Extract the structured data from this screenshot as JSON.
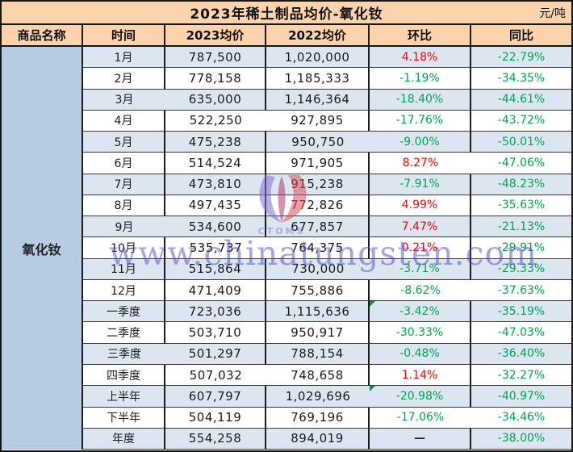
{
  "title": {
    "text": "2023年稀土制品均价-氧化钕",
    "unit": "元/吨"
  },
  "product_name": "氧化钕",
  "watermark": {
    "text": "www.chinatungsten.com",
    "logo_label": "CTOMS"
  },
  "colors": {
    "header_bg": "#fcd3ac",
    "product_column_bg": "#b7cce2",
    "alt_row_bg": "#dce6f1",
    "positive_pct": "#ff0000",
    "negative_pct": "#00a651",
    "flag_triangle": "#1c8a3c",
    "watermark_blue": "#4b4bcd"
  },
  "flagged_mom_rows": [
    12,
    16
  ],
  "chart_data": {
    "type": "table",
    "title": "2023年稀土制品均价-氧化钕",
    "unit": "元/吨",
    "product": "氧化钕",
    "columns": [
      "商品名称",
      "时间",
      "2023均价",
      "2022均价",
      "环比",
      "同比"
    ],
    "rows": [
      [
        "1月",
        "787,500",
        "1,020,000",
        "4.18%",
        "-22.79%"
      ],
      [
        "2月",
        "778,158",
        "1,185,333",
        "-1.19%",
        "-34.35%"
      ],
      [
        "3月",
        "635,000",
        "1,146,364",
        "-18.40%",
        "-44.61%"
      ],
      [
        "4月",
        "522,250",
        "927,895",
        "-17.76%",
        "-43.72%"
      ],
      [
        "5月",
        "475,238",
        "950,750",
        "-9.00%",
        "-50.01%"
      ],
      [
        "6月",
        "514,524",
        "971,905",
        "8.27%",
        "-47.06%"
      ],
      [
        "7月",
        "473,810",
        "915,238",
        "-7.91%",
        "-48.23%"
      ],
      [
        "8月",
        "497,435",
        "772,826",
        "4.99%",
        "-35.63%"
      ],
      [
        "9月",
        "534,600",
        "677,857",
        "7.47%",
        "-21.13%"
      ],
      [
        "10月",
        "535,737",
        "764,375",
        "0.21%",
        "-29.91%"
      ],
      [
        "11月",
        "515,864",
        "730,000",
        "-3.71%",
        "-29.33%"
      ],
      [
        "12月",
        "471,409",
        "755,886",
        "-8.62%",
        "-37.63%"
      ],
      [
        "一季度",
        "723,036",
        "1,115,636",
        "-3.42%",
        "-35.19%"
      ],
      [
        "二季度",
        "503,710",
        "950,917",
        "-30.33%",
        "-47.03%"
      ],
      [
        "三季度",
        "501,297",
        "788,154",
        "-0.48%",
        "-36.40%"
      ],
      [
        "四季度",
        "507,032",
        "748,658",
        "1.14%",
        "-32.27%"
      ],
      [
        "上半年",
        "607,797",
        "1,029,696",
        "-20.98%",
        "-40.97%"
      ],
      [
        "下半年",
        "504,119",
        "769,196",
        "-17.06%",
        "-34.46%"
      ],
      [
        "年度",
        "554,258",
        "894,019",
        "—",
        "-38.00%"
      ]
    ]
  }
}
